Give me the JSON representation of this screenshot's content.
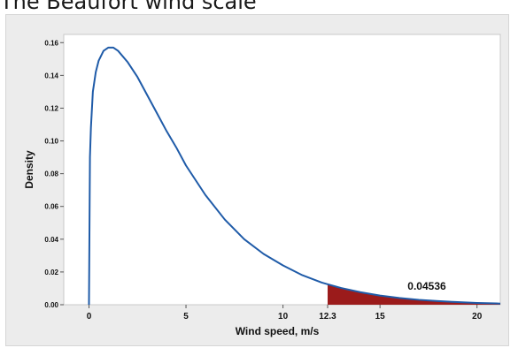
{
  "caption": "The Beaufort wind scale",
  "chart_data": {
    "type": "area",
    "xlabel": "Wind speed, m/s",
    "ylabel": "Density",
    "xlim": [
      -1.3,
      21.2
    ],
    "ylim": [
      0,
      0.165
    ],
    "xticks": [
      0,
      5,
      10,
      12.3,
      15,
      20
    ],
    "xtick_labels": [
      "0",
      "5",
      "10",
      "12.3",
      "15",
      "20"
    ],
    "yticks": [
      0.0,
      0.02,
      0.04,
      0.06,
      0.08,
      0.1,
      0.12,
      0.14,
      0.16
    ],
    "ytick_labels": [
      "0.00",
      "0.02",
      "0.04",
      "0.06",
      "0.08",
      "0.10",
      "0.12",
      "0.14",
      "0.16"
    ],
    "grid": false,
    "curve": {
      "x": [
        0,
        0.05,
        0.1,
        0.2,
        0.35,
        0.5,
        0.75,
        1.0,
        1.25,
        1.5,
        2,
        2.5,
        3,
        3.5,
        4,
        4.5,
        5,
        6,
        7,
        8,
        9,
        10,
        11,
        12,
        12.3,
        13,
        14,
        15,
        16,
        17,
        18,
        19,
        20,
        21,
        21.2
      ],
      "y": [
        0,
        0.09,
        0.108,
        0.13,
        0.142,
        0.149,
        0.155,
        0.157,
        0.157,
        0.155,
        0.148,
        0.139,
        0.128,
        0.117,
        0.106,
        0.096,
        0.085,
        0.067,
        0.052,
        0.04,
        0.031,
        0.024,
        0.018,
        0.0135,
        0.0125,
        0.0102,
        0.0076,
        0.0056,
        0.0041,
        0.003,
        0.0022,
        0.0016,
        0.0011,
        0.0008,
        0.0007
      ]
    },
    "shaded_region": {
      "from": 12.3,
      "to": 21.2,
      "area_label": "0.04536"
    },
    "colors": {
      "curve": "#1f5ba8",
      "fill": "#9b1b1b",
      "plot_bg": "#ffffff",
      "frame_bg": "#ececec"
    }
  }
}
